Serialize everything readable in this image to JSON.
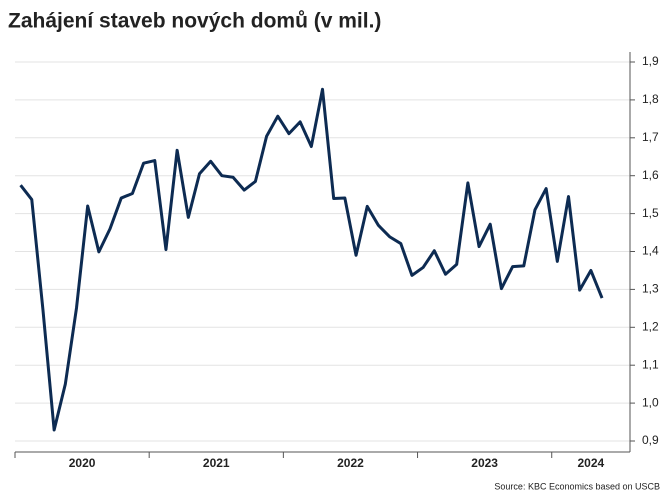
{
  "chart_data": {
    "type": "line",
    "title": "Zahájení staveb nových domů (v mil.)",
    "source": "Source: KBC Economics based on USCB",
    "categories": [
      null,
      null,
      null,
      null,
      null,
      null,
      null,
      null,
      null,
      null,
      null,
      null,
      null,
      null,
      null,
      null,
      null,
      null,
      null,
      null,
      null,
      null,
      null,
      null,
      null,
      null,
      null,
      null,
      null,
      null,
      null,
      null,
      null,
      null,
      null,
      null,
      null,
      null,
      null,
      null,
      null,
      null,
      null,
      null,
      null,
      null,
      null,
      null,
      null,
      null,
      null,
      null,
      null
    ],
    "x_groups": [
      "2020",
      "2021",
      "2022",
      "2023",
      "2024"
    ],
    "series": [
      {
        "name": null,
        "color": "#0d2b52",
        "values": [
          1.575,
          1.537,
          1.246,
          0.929,
          1.05,
          1.251,
          1.52,
          1.399,
          1.46,
          1.541,
          1.553,
          1.633,
          1.64,
          1.405,
          1.667,
          1.49,
          1.605,
          1.638,
          1.6,
          1.596,
          1.562,
          1.585,
          1.704,
          1.757,
          1.711,
          1.742,
          1.677,
          1.828,
          1.54,
          1.541,
          1.39,
          1.519,
          1.469,
          1.439,
          1.421,
          1.337,
          1.358,
          1.402,
          1.34,
          1.366,
          1.581,
          1.413,
          1.472,
          1.302,
          1.36,
          1.362,
          1.51,
          1.566,
          1.374,
          1.545,
          1.298,
          1.35,
          1.277
        ]
      }
    ],
    "ylim": [
      0.9,
      1.9
    ],
    "yticks": [
      {
        "value": 0.9,
        "label": "0,9"
      },
      {
        "value": 1.0,
        "label": "1,0"
      },
      {
        "value": 1.1,
        "label": "1,1"
      },
      {
        "value": 1.2,
        "label": "1,2"
      },
      {
        "value": 1.3,
        "label": "1,3"
      },
      {
        "value": 1.4,
        "label": "1,4"
      },
      {
        "value": 1.5,
        "label": "1,5"
      },
      {
        "value": 1.6,
        "label": "1,6"
      },
      {
        "value": 1.7,
        "label": "1,7"
      },
      {
        "value": 1.8,
        "label": "1,8"
      },
      {
        "value": 1.9,
        "label": "1,9"
      }
    ],
    "grid": true
  }
}
